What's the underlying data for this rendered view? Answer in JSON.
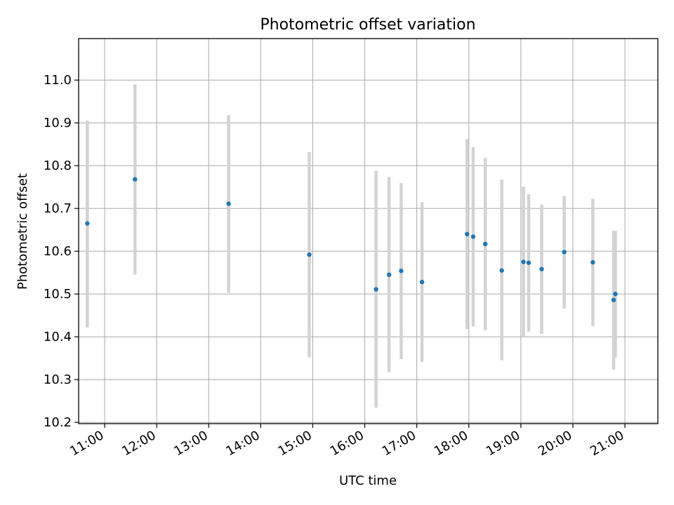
{
  "chart_data": {
    "type": "scatter",
    "title": "Photometric offset variation",
    "xlabel": "UTC time",
    "ylabel": "Photometric offset",
    "x_ticks": [
      "11:00",
      "12:00",
      "13:00",
      "14:00",
      "15:00",
      "16:00",
      "17:00",
      "18:00",
      "19:00",
      "20:00",
      "21:00"
    ],
    "y_ticks": [
      "10.2",
      "10.3",
      "10.4",
      "10.5",
      "10.6",
      "10.7",
      "10.8",
      "10.9",
      "11.0"
    ],
    "xlim": [
      "10:30",
      "21:38"
    ],
    "ylim": [
      10.197,
      11.097
    ],
    "grid": true,
    "marker_color": "#1f77b4",
    "errorbar_color": "#d3d3d3",
    "series": [
      {
        "points": [
          {
            "x": "10:40",
            "y": 10.665,
            "yerr_low": 10.422,
            "yerr_high": 10.905
          },
          {
            "x": "11:35",
            "y": 10.768,
            "yerr_low": 10.546,
            "yerr_high": 10.99
          },
          {
            "x": "13:23",
            "y": 10.711,
            "yerr_low": 10.503,
            "yerr_high": 10.918
          },
          {
            "x": "14:56",
            "y": 10.592,
            "yerr_low": 10.352,
            "yerr_high": 10.832
          },
          {
            "x": "16:13",
            "y": 10.511,
            "yerr_low": 10.234,
            "yerr_high": 10.788
          },
          {
            "x": "16:28",
            "y": 10.545,
            "yerr_low": 10.317,
            "yerr_high": 10.773
          },
          {
            "x": "16:42",
            "y": 10.554,
            "yerr_low": 10.348,
            "yerr_high": 10.759
          },
          {
            "x": "17:06",
            "y": 10.528,
            "yerr_low": 10.341,
            "yerr_high": 10.715
          },
          {
            "x": "17:58",
            "y": 10.64,
            "yerr_low": 10.418,
            "yerr_high": 10.862
          },
          {
            "x": "18:05",
            "y": 10.634,
            "yerr_low": 10.424,
            "yerr_high": 10.843
          },
          {
            "x": "18:19",
            "y": 10.617,
            "yerr_low": 10.415,
            "yerr_high": 10.818
          },
          {
            "x": "18:38",
            "y": 10.555,
            "yerr_low": 10.345,
            "yerr_high": 10.767
          },
          {
            "x": "19:03",
            "y": 10.575,
            "yerr_low": 10.4,
            "yerr_high": 10.751
          },
          {
            "x": "19:09",
            "y": 10.573,
            "yerr_low": 10.412,
            "yerr_high": 10.733
          },
          {
            "x": "19:24",
            "y": 10.558,
            "yerr_low": 10.407,
            "yerr_high": 10.709
          },
          {
            "x": "19:50",
            "y": 10.598,
            "yerr_low": 10.466,
            "yerr_high": 10.729
          },
          {
            "x": "20:23",
            "y": 10.574,
            "yerr_low": 10.425,
            "yerr_high": 10.723
          },
          {
            "x": "20:47",
            "y": 10.486,
            "yerr_low": 10.323,
            "yerr_high": 10.648
          },
          {
            "x": "20:49",
            "y": 10.5,
            "yerr_low": 10.352,
            "yerr_high": 10.648
          }
        ]
      }
    ]
  }
}
